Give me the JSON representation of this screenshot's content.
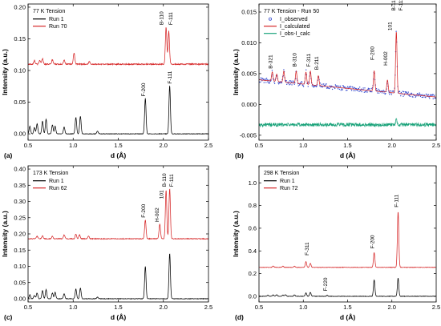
{
  "chart_data": [
    {
      "type": "line",
      "panel_label": "(a)",
      "title": "77 K Tension",
      "xlabel": "d (Å)",
      "ylabel": "Intensity (a.u.)",
      "xlim": [
        0.5,
        2.5
      ],
      "ylim": [
        -0.01,
        0.205
      ],
      "xticks": [
        0.5,
        1.0,
        1.5,
        2.0,
        2.5
      ],
      "yticks": [
        0.0,
        0.05,
        0.1,
        0.15,
        0.2
      ],
      "legend_position": "top-left",
      "series": [
        {
          "name": "Run 1",
          "color": "#000000",
          "baseline": 0.0,
          "noise": 0.0004,
          "peaks": [
            [
              0.52,
              0.012
            ],
            [
              0.57,
              0.01
            ],
            [
              0.6,
              0.016
            ],
            [
              0.66,
              0.02
            ],
            [
              0.7,
              0.023
            ],
            [
              0.77,
              0.014
            ],
            [
              0.8,
              0.012
            ],
            [
              0.9,
              0.011
            ],
            [
              1.03,
              0.026
            ],
            [
              1.08,
              0.028
            ],
            [
              1.27,
              0.004
            ],
            [
              1.8,
              0.056
            ],
            [
              2.07,
              0.076
            ]
          ]
        },
        {
          "name": "Run 70",
          "color": "#d62728",
          "baseline": 0.11,
          "noise": 0.0009,
          "peaks": [
            [
              0.57,
              0.006
            ],
            [
              0.63,
              0.006
            ],
            [
              0.66,
              0.009
            ],
            [
              0.77,
              0.007
            ],
            [
              0.9,
              0.007
            ],
            [
              1.01,
              0.018
            ],
            [
              1.18,
              0.004
            ],
            [
              2.03,
              0.058
            ],
            [
              2.06,
              0.052
            ]
          ]
        }
      ],
      "annotations": [
        {
          "text": "F-200",
          "x": 1.8,
          "y": 0.059
        },
        {
          "text": "F-111",
          "x": 2.09,
          "y": 0.079
        },
        {
          "text": "B-110",
          "x": 2.0,
          "y": 0.172
        },
        {
          "text": "F-111",
          "x": 2.1,
          "y": 0.172
        }
      ]
    },
    {
      "type": "line",
      "panel_label": "(b)",
      "title": "77 K Tension - Run 50",
      "xlabel": "d (Å)",
      "ylabel": "Intensity (a.u.)",
      "xlim": [
        0.5,
        2.5
      ],
      "ylim": [
        -0.0058,
        0.0163
      ],
      "xticks": [
        0.5,
        1.0,
        1.5,
        2.0,
        2.5
      ],
      "yticks": [
        -0.005,
        0.0,
        0.005,
        0.01,
        0.015
      ],
      "legend_position": "top-left",
      "series": [
        {
          "name": "I_observed",
          "color": "#3a4fd0",
          "style": "points",
          "baseline": 0.004,
          "slope": -0.0014,
          "noise": 0.0004,
          "peaks": [
            [
              0.65,
              0.0015
            ],
            [
              0.7,
              0.0012
            ],
            [
              0.78,
              0.0018
            ],
            [
              0.92,
              0.002
            ],
            [
              1.03,
              0.002
            ],
            [
              1.08,
              0.0022
            ],
            [
              1.17,
              0.0016
            ],
            [
              1.8,
              0.0033
            ],
            [
              1.95,
              0.002
            ],
            [
              2.05,
              0.01
            ]
          ]
        },
        {
          "name": "I_calculated",
          "color": "#d62728",
          "baseline": 0.004,
          "slope": -0.0014,
          "noise": 0.0,
          "peaks": [
            [
              0.65,
              0.0015
            ],
            [
              0.7,
              0.0012
            ],
            [
              0.78,
              0.0018
            ],
            [
              0.92,
              0.002
            ],
            [
              1.03,
              0.002
            ],
            [
              1.08,
              0.0022
            ],
            [
              1.17,
              0.0016
            ],
            [
              1.8,
              0.0033
            ],
            [
              1.95,
              0.002
            ],
            [
              2.05,
              0.01
            ]
          ]
        },
        {
          "name": "I_obs-I_calc",
          "color": "#1aa37a",
          "baseline": -0.0033,
          "noise": 0.0003,
          "peaks": [
            [
              2.05,
              0.0008
            ]
          ]
        }
      ],
      "annotations": [
        {
          "text": "B-321",
          "x": 0.65,
          "y": 0.0058
        },
        {
          "text": "B-310",
          "x": 0.92,
          "y": 0.0061
        },
        {
          "text": "F-311",
          "x": 1.08,
          "y": 0.0061
        },
        {
          "text": "B-211",
          "x": 1.17,
          "y": 0.0056
        },
        {
          "text": "F-200",
          "x": 1.8,
          "y": 0.0072
        },
        {
          "text": "H-002",
          "x": 1.95,
          "y": 0.0063
        },
        {
          "text": "101",
          "x": 2.0,
          "y": 0.012
        },
        {
          "text": "B-110",
          "x": 2.04,
          "y": 0.0152
        },
        {
          "text": "F-111",
          "x": 2.12,
          "y": 0.0152
        }
      ]
    },
    {
      "type": "line",
      "panel_label": "(c)",
      "title": "173 K Tension",
      "xlabel": "d (Å)",
      "ylabel": "Intensity (a.u.)",
      "xlim": [
        0.5,
        2.5
      ],
      "ylim": [
        -0.01,
        0.41
      ],
      "xticks": [
        0.5,
        1.0,
        1.5,
        2.0,
        2.5
      ],
      "yticks": [
        0.0,
        0.05,
        0.1,
        0.15,
        0.2,
        0.25,
        0.3,
        0.35,
        0.4
      ],
      "legend_position": "top-left",
      "series": [
        {
          "name": "Run 1",
          "color": "#000000",
          "baseline": 0.0,
          "noise": 0.0008,
          "peaks": [
            [
              0.52,
              0.012
            ],
            [
              0.57,
              0.01
            ],
            [
              0.6,
              0.018
            ],
            [
              0.66,
              0.025
            ],
            [
              0.7,
              0.028
            ],
            [
              0.77,
              0.018
            ],
            [
              0.8,
              0.02
            ],
            [
              0.9,
              0.015
            ],
            [
              1.03,
              0.03
            ],
            [
              1.08,
              0.033
            ],
            [
              1.27,
              0.005
            ],
            [
              1.8,
              0.1
            ],
            [
              2.07,
              0.14
            ]
          ]
        },
        {
          "name": "Run 62",
          "color": "#d62728",
          "baseline": 0.185,
          "noise": 0.0012,
          "peaks": [
            [
              0.6,
              0.008
            ],
            [
              0.66,
              0.009
            ],
            [
              0.77,
              0.008
            ],
            [
              0.9,
              0.012
            ],
            [
              1.03,
              0.014
            ],
            [
              1.07,
              0.012
            ],
            [
              1.17,
              0.008
            ],
            [
              1.8,
              0.058
            ],
            [
              1.96,
              0.045
            ],
            [
              2.03,
              0.15
            ],
            [
              2.07,
              0.155
            ]
          ]
        }
      ],
      "annotations": [
        {
          "text": "F-200",
          "x": 1.8,
          "y": 0.25
        },
        {
          "text": "H-002",
          "x": 1.95,
          "y": 0.237
        },
        {
          "text": "101",
          "x": 2.0,
          "y": 0.308
        },
        {
          "text": "B-110",
          "x": 2.03,
          "y": 0.345
        },
        {
          "text": "F-111",
          "x": 2.11,
          "y": 0.345
        }
      ]
    },
    {
      "type": "line",
      "panel_label": "(d)",
      "title": "298 K Tension",
      "xlabel": "d (Å)",
      "ylabel": "Intensity (a.u.)",
      "xlim": [
        0.5,
        2.5
      ],
      "ylim": [
        -0.05,
        1.15
      ],
      "xticks": [
        0.5,
        1.0,
        1.5,
        2.0,
        2.5
      ],
      "yticks": [
        0.0,
        0.2,
        0.4,
        0.6,
        0.8,
        1.0
      ],
      "legend_position": "top-left",
      "series": [
        {
          "name": "Run 1",
          "color": "#000000",
          "baseline": 0.0,
          "noise": 0.002,
          "peaks": [
            [
              0.6,
              0.01
            ],
            [
              0.66,
              0.012
            ],
            [
              0.7,
              0.014
            ],
            [
              0.77,
              0.01
            ],
            [
              0.8,
              0.014
            ],
            [
              0.9,
              0.012
            ],
            [
              1.03,
              0.03
            ],
            [
              1.08,
              0.035
            ],
            [
              1.27,
              0.008
            ],
            [
              1.8,
              0.145
            ],
            [
              2.07,
              0.16
            ]
          ]
        },
        {
          "name": "Run 72",
          "color": "#d62728",
          "baseline": 0.255,
          "noise": 0.002,
          "peaks": [
            [
              0.66,
              0.012
            ],
            [
              0.77,
              0.01
            ],
            [
              0.9,
              0.01
            ],
            [
              1.03,
              0.05
            ],
            [
              1.08,
              0.035
            ],
            [
              1.8,
              0.13
            ],
            [
              2.07,
              0.49
            ]
          ]
        }
      ],
      "annotations": [
        {
          "text": "F-220",
          "x": 1.27,
          "y": 0.045
        },
        {
          "text": "F-311",
          "x": 1.06,
          "y": 0.36
        },
        {
          "text": "F-200",
          "x": 1.8,
          "y": 0.42
        },
        {
          "text": "F-111",
          "x": 2.07,
          "y": 0.785
        }
      ]
    }
  ]
}
